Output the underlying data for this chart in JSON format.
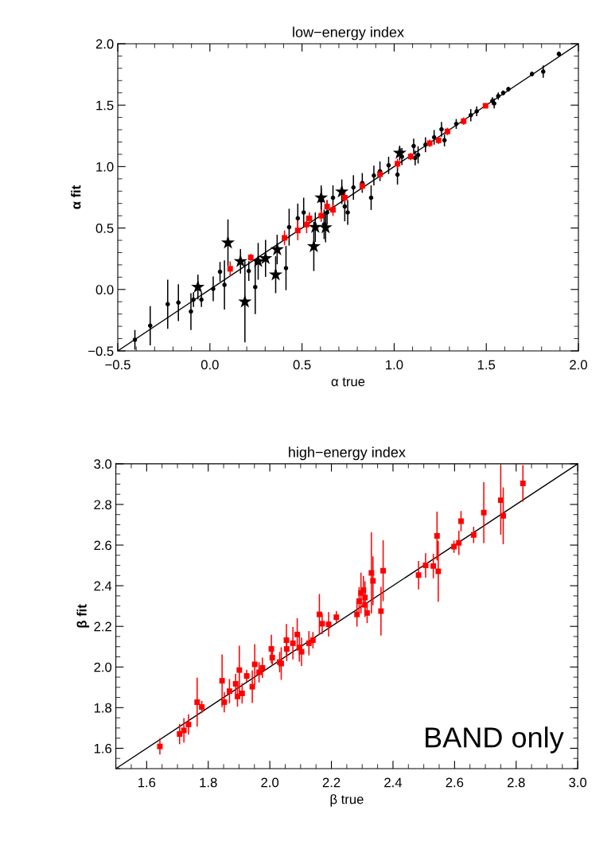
{
  "chart_data": [
    {
      "type": "scatter",
      "title": "low−energy index",
      "xlabel": "α true",
      "ylabel": "α fit",
      "xlim": [
        -0.5,
        2.0
      ],
      "ylim": [
        -0.5,
        2.0
      ],
      "xticks": [
        {
          "value": -0.5,
          "label": "−0.5"
        },
        {
          "value": 0,
          "label": "0.0"
        },
        {
          "value": 0.5,
          "label": "0.5"
        },
        {
          "value": 1.0,
          "label": "1.0"
        },
        {
          "value": 1.5,
          "label": "1.5"
        },
        {
          "value": 2.0,
          "label": "2.0"
        }
      ],
      "yticks": [
        {
          "value": -0.5,
          "label": "−0.5"
        },
        {
          "value": 0,
          "label": "0.0"
        },
        {
          "value": 0.5,
          "label": "0.5"
        },
        {
          "value": 1.0,
          "label": "1.0"
        },
        {
          "value": 1.5,
          "label": "1.5"
        },
        {
          "value": 2.0,
          "label": "2.0"
        }
      ],
      "series": [
        {
          "type": "line",
          "color": "#000000",
          "marker": "none",
          "line_style": "solid",
          "x": [
            -0.5,
            2.0
          ],
          "values": [
            -0.5,
            2.0
          ]
        },
        {
          "color": "#000000",
          "marker": "circle",
          "x": [
            -0.407,
            -0.324,
            -0.229,
            -0.171,
            -0.103,
            -0.089,
            -0.046,
            0.018,
            0.055,
            0.079,
            0.211,
            0.246,
            0.413,
            1.894,
            1.748,
            1.809,
            1.62,
            1.592,
            1.565,
            1.533,
            1.543,
            1.448,
            1.416,
            1.337,
            1.273,
            1.257,
            1.217,
            1.17,
            1.13,
            1.106,
            1.114,
            1.042,
            1.018,
            0.97,
            0.923,
            0.875,
            0.827,
            0.89,
            0.779,
            0.732,
            0.748,
            0.668,
            0.604,
            0.636,
            0.62,
            0.477,
            0.509,
            0.43
          ],
          "values": [
            -0.41,
            -0.295,
            -0.12,
            -0.107,
            -0.18,
            -0.083,
            -0.083,
            0.005,
            0.144,
            0.037,
            0.15,
            0.02,
            0.174,
            1.917,
            1.754,
            1.773,
            1.63,
            1.6,
            1.574,
            1.534,
            1.514,
            1.45,
            1.418,
            1.347,
            1.214,
            1.303,
            1.238,
            1.178,
            1.095,
            1.167,
            1.07,
            1.082,
            0.934,
            1.01,
            0.962,
            0.747,
            0.867,
            0.927,
            0.83,
            0.675,
            0.627,
            0.747,
            0.723,
            0.627,
            0.53,
            0.579,
            0.627,
            0.507
          ],
          "errors": [
            0.08,
            0.16,
            0.2,
            0.15,
            0.15,
            0.06,
            0.06,
            0.1,
            0.08,
            0.2,
            0.08,
            0.22,
            0.18,
            0.02,
            0.02,
            0.05,
            0.02,
            0.02,
            0.03,
            0.03,
            0.04,
            0.04,
            0.05,
            0.04,
            0.05,
            0.06,
            0.06,
            0.06,
            0.07,
            0.06,
            0.06,
            0.07,
            0.08,
            0.07,
            0.08,
            0.1,
            0.08,
            0.08,
            0.1,
            0.12,
            0.1,
            0.1,
            0.1,
            0.1,
            0.12,
            0.12,
            0.12,
            0.15
          ]
        },
        {
          "color": "#000000",
          "marker": "star",
          "x": [
            0.098,
            -0.065,
            0.19,
            0.357,
            0.564,
            0.166,
            0.262,
            0.302,
            0.365,
            0.628,
            0.604,
            0.716,
            0.572,
            1.03
          ],
          "values": [
            0.38,
            0.02,
            -0.1,
            0.12,
            0.35,
            0.229,
            0.229,
            0.253,
            0.325,
            0.504,
            0.747,
            0.795,
            0.507,
            1.11
          ],
          "errors": [
            0.19,
            0.1,
            0.33,
            0.15,
            0.2,
            0.1,
            0.15,
            0.15,
            0.12,
            0.12,
            0.1,
            0.1,
            0.12,
            0.06
          ]
        },
        {
          "color": "#ff0000",
          "marker": "square",
          "x": [
            0.11,
            0.222,
            0.405,
            0.477,
            0.525,
            0.604,
            0.668,
            0.54,
            0.636,
            0.732,
            0.827,
            0.923,
            1.018,
            1.09,
            1.193,
            1.241,
            1.289,
            1.377,
            1.496
          ],
          "values": [
            0.168,
            0.26,
            0.42,
            0.48,
            0.528,
            0.6,
            0.648,
            0.579,
            0.675,
            0.747,
            0.843,
            0.938,
            1.023,
            1.082,
            1.19,
            1.214,
            1.286,
            1.37,
            1.495
          ],
          "errors": [
            0.06,
            0.03,
            0.06,
            0.08,
            0.07,
            0.05,
            0.05,
            0.05,
            0.05,
            0.04,
            0.04,
            0.04,
            0.04,
            0.03,
            0.03,
            0.03,
            0.03,
            0.03,
            0.02
          ]
        }
      ]
    },
    {
      "type": "scatter",
      "title": "high−energy index",
      "xlabel": "β true",
      "ylabel": "β fit",
      "xlim": [
        1.5,
        3.0
      ],
      "ylim": [
        1.5,
        3.0
      ],
      "xticks": [
        {
          "value": 1.6,
          "label": "1.6"
        },
        {
          "value": 1.8,
          "label": "1.8"
        },
        {
          "value": 2.0,
          "label": "2.0"
        },
        {
          "value": 2.2,
          "label": "2.2"
        },
        {
          "value": 2.4,
          "label": "2.4"
        },
        {
          "value": 2.6,
          "label": "2.6"
        },
        {
          "value": 2.8,
          "label": "2.8"
        },
        {
          "value": 3.0,
          "label": "3.0"
        }
      ],
      "yticks": [
        {
          "value": 1.6,
          "label": "1.6"
        },
        {
          "value": 1.8,
          "label": "1.8"
        },
        {
          "value": 2.0,
          "label": "2.0"
        },
        {
          "value": 2.2,
          "label": "2.2"
        },
        {
          "value": 2.4,
          "label": "2.4"
        },
        {
          "value": 2.6,
          "label": "2.6"
        },
        {
          "value": 2.8,
          "label": "2.8"
        },
        {
          "value": 3.0,
          "label": "3.0"
        }
      ],
      "annotations": [
        "BAND only"
      ],
      "series": [
        {
          "type": "line",
          "color": "#000000",
          "marker": "none",
          "line_style": "solid",
          "x": [
            1.5,
            3.0
          ],
          "values": [
            1.5,
            3.0
          ]
        },
        {
          "color": "#ff0000",
          "marker": "square",
          "x": [
            1.643,
            1.707,
            1.721,
            1.736,
            1.764,
            1.779,
            1.845,
            1.852,
            1.869,
            1.889,
            1.895,
            1.901,
            1.91,
            1.925,
            1.943,
            1.951,
            1.965,
            1.976,
            2.005,
            2.008,
            2.032,
            2.037,
            2.054,
            2.055,
            2.075,
            2.089,
            2.096,
            2.103,
            2.127,
            2.14,
            2.17,
            2.191,
            2.161,
            2.216,
            2.283,
            2.29,
            2.296,
            2.304,
            2.309,
            2.309,
            2.316,
            2.33,
            2.335,
            2.361,
            2.368,
            2.483,
            2.506,
            2.531,
            2.543,
            2.547,
            2.598,
            2.614,
            2.621,
            2.662,
            2.695,
            2.75,
            2.758,
            2.822
          ],
          "values": [
            1.609,
            1.67,
            1.688,
            1.717,
            1.827,
            1.803,
            1.932,
            1.827,
            1.881,
            1.917,
            1.855,
            1.985,
            1.87,
            1.956,
            1.903,
            2.013,
            1.974,
            1.996,
            2.089,
            2.046,
            2.024,
            2.017,
            2.132,
            2.089,
            2.117,
            2.16,
            2.096,
            2.075,
            2.117,
            2.132,
            2.213,
            2.21,
            2.259,
            2.245,
            2.259,
            2.324,
            2.364,
            2.378,
            2.342,
            2.306,
            2.266,
            2.463,
            2.424,
            2.275,
            2.474,
            2.452,
            2.5,
            2.497,
            2.645,
            2.471,
            2.592,
            2.611,
            2.718,
            2.65,
            2.76,
            2.821,
            2.744,
            2.904
          ],
          "errors": [
            0.04,
            0.05,
            0.06,
            0.05,
            0.12,
            0.03,
            0.13,
            0.05,
            0.06,
            0.05,
            0.05,
            0.12,
            0.05,
            0.03,
            0.08,
            0.1,
            0.05,
            0.05,
            0.07,
            0.04,
            0.05,
            0.08,
            0.08,
            0.06,
            0.08,
            0.08,
            0.07,
            0.07,
            0.06,
            0.04,
            0.05,
            0.06,
            0.1,
            0.03,
            0.06,
            0.07,
            0.1,
            0.07,
            0.08,
            0.06,
            0.05,
            0.2,
            0.12,
            0.12,
            0.15,
            0.07,
            0.06,
            0.06,
            0.12,
            0.15,
            0.03,
            0.06,
            0.05,
            0.04,
            0.15,
            0.17,
            0.14,
            0.09
          ]
        }
      ]
    }
  ]
}
